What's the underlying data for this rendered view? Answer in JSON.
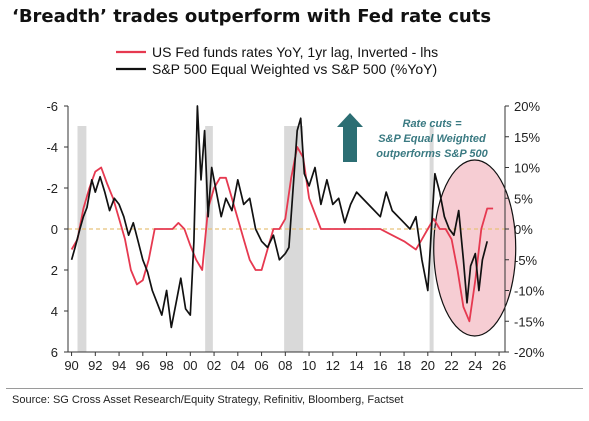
{
  "title": "‘Breadth’ trades outperform with Fed rate cuts",
  "source": "Source: SG Cross Asset Research/Equity Strategy, Refinitiv, Bloomberg, Factset",
  "chart_data": {
    "type": "line",
    "legend_position": "top-left",
    "series": [
      {
        "name": "US Fed funds rates YoY, 1yr lag, Inverted - lhs",
        "axis": "left",
        "color": "#e63950",
        "x": [
          1990.0,
          1990.5,
          1991.0,
          1991.5,
          1992.0,
          1992.5,
          1993.0,
          1993.5,
          1994.0,
          1994.5,
          1995.0,
          1995.5,
          1996.0,
          1996.5,
          1997.0,
          1997.5,
          1998.0,
          1998.5,
          1999.0,
          1999.5,
          2000.0,
          2000.5,
          2001.0,
          2001.5,
          2002.0,
          2002.5,
          2003.0,
          2003.5,
          2004.0,
          2004.5,
          2005.0,
          2005.5,
          2006.0,
          2006.5,
          2007.0,
          2007.5,
          2008.0,
          2008.5,
          2009.0,
          2009.5,
          2010.0,
          2011.0,
          2012.0,
          2013.0,
          2014.0,
          2015.0,
          2016.0,
          2017.0,
          2018.0,
          2019.0,
          2019.5,
          2020.0,
          2020.5,
          2021.0,
          2021.5,
          2022.0,
          2022.5,
          2023.0,
          2023.5,
          2024.0,
          2024.5,
          2025.0,
          2025.5
        ],
        "values": [
          1.0,
          0.5,
          -1.0,
          -2.0,
          -2.8,
          -3.0,
          -2.2,
          -1.5,
          -0.5,
          0.5,
          2.0,
          2.7,
          2.5,
          1.5,
          0.0,
          0.0,
          0.0,
          0.0,
          -0.3,
          0.0,
          0.8,
          1.5,
          2.0,
          -1.0,
          -2.0,
          -2.5,
          -2.5,
          -1.5,
          -0.5,
          0.5,
          1.5,
          2.0,
          2.0,
          1.0,
          0.0,
          0.0,
          -0.5,
          -2.5,
          -4.0,
          -3.5,
          -1.5,
          0.0,
          0.0,
          0.0,
          0.0,
          0.0,
          0.0,
          0.3,
          0.6,
          1.0,
          0.5,
          0.0,
          -0.5,
          0.0,
          0.0,
          0.5,
          2.0,
          3.8,
          4.5,
          2.5,
          0.0,
          -1.0,
          -1.0
        ]
      },
      {
        "name": "S&P 500 Equal Weighted vs S&P 500 (%YoY)",
        "axis": "right",
        "color": "#111111",
        "x": [
          1990.0,
          1990.3,
          1990.7,
          1991.0,
          1991.3,
          1991.7,
          1992.0,
          1992.4,
          1992.8,
          1993.2,
          1993.6,
          1994.0,
          1994.4,
          1994.8,
          1995.2,
          1995.6,
          1996.0,
          1996.4,
          1996.8,
          1997.2,
          1997.6,
          1998.0,
          1998.4,
          1998.8,
          1999.2,
          1999.6,
          2000.0,
          2000.3,
          2000.6,
          2000.9,
          2001.2,
          2001.5,
          2001.8,
          2002.2,
          2002.6,
          2003.0,
          2003.5,
          2004.0,
          2004.5,
          2005.0,
          2005.5,
          2006.0,
          2006.5,
          2007.0,
          2007.5,
          2008.0,
          2008.3,
          2008.6,
          2009.0,
          2009.3,
          2009.6,
          2010.0,
          2010.5,
          2011.0,
          2011.5,
          2012.0,
          2012.5,
          2013.0,
          2013.5,
          2014.0,
          2015.0,
          2016.0,
          2016.5,
          2017.0,
          2018.0,
          2018.5,
          2019.0,
          2019.5,
          2020.0,
          2020.3,
          2020.6,
          2021.0,
          2021.4,
          2021.8,
          2022.2,
          2022.6,
          2023.0,
          2023.3,
          2023.6,
          2024.0,
          2024.3,
          2024.6,
          2025.0
        ],
        "values": [
          -5.0,
          -3.0,
          0.0,
          2.0,
          3.5,
          8.0,
          6.0,
          8.5,
          6.0,
          3.0,
          5.0,
          4.0,
          2.0,
          -1.0,
          1.0,
          -2.0,
          -5.0,
          -7.0,
          -10.0,
          -12.0,
          -14.0,
          -10.0,
          -16.0,
          -12.0,
          -8.0,
          -13.0,
          -14.0,
          -2.0,
          20.0,
          8.0,
          16.0,
          2.0,
          10.0,
          6.0,
          2.0,
          5.0,
          3.0,
          8.0,
          4.0,
          5.0,
          0.0,
          -2.0,
          -3.0,
          -1.0,
          -5.0,
          -4.0,
          -3.0,
          5.0,
          16.0,
          18.0,
          9.0,
          7.0,
          10.0,
          4.0,
          8.0,
          4.0,
          5.0,
          1.0,
          4.0,
          6.0,
          4.0,
          2.0,
          6.0,
          3.0,
          1.0,
          0.0,
          2.0,
          -5.0,
          -10.0,
          0.0,
          9.0,
          6.0,
          2.0,
          0.0,
          -1.0,
          3.0,
          -5.0,
          -12.0,
          -6.0,
          -4.0,
          -10.0,
          -5.0,
          -2.0
        ]
      }
    ],
    "y_left": {
      "ylim": [
        6,
        -6
      ],
      "ticks": [
        -6,
        -4,
        -2,
        0,
        2,
        4,
        6
      ],
      "inverted": true
    },
    "y_right": {
      "ylim": [
        -20,
        20
      ],
      "ticks": [
        20,
        15,
        10,
        5,
        0,
        -5,
        -10,
        -15,
        -20
      ],
      "tick_labels": [
        "20%",
        "15%",
        "10%",
        "5%",
        "0%",
        "-5%",
        "-10%",
        "-15%",
        "-20%"
      ]
    },
    "x_axis": {
      "xlim": [
        1989.7,
        2026.5
      ],
      "ticks": [
        1990,
        1992,
        1994,
        1996,
        1998,
        2000,
        2002,
        2004,
        2006,
        2008,
        2010,
        2012,
        2014,
        2016,
        2018,
        2020,
        2022,
        2024,
        2026
      ],
      "tick_labels": [
        "90",
        "92",
        "94",
        "96",
        "98",
        "00",
        "02",
        "04",
        "06",
        "08",
        "10",
        "12",
        "14",
        "16",
        "18",
        "20",
        "22",
        "24",
        "26"
      ]
    },
    "recessions": [
      [
        1990.5,
        1991.25
      ],
      [
        2001.25,
        2001.9
      ],
      [
        2007.9,
        2009.5
      ],
      [
        2020.15,
        2020.4
      ]
    ],
    "zero_line": {
      "style": "dashed",
      "color": "#e8c27a"
    },
    "annotation": {
      "lines": [
        "Rate cuts =",
        "S&P Equal Weighted",
        "outperforms S&P 500"
      ],
      "color": "#3a7a82",
      "arrow_color": "#2c6e73"
    },
    "highlight": {
      "shape": "ellipse",
      "fill": "#f6cdd3",
      "stroke": "#111111"
    }
  }
}
